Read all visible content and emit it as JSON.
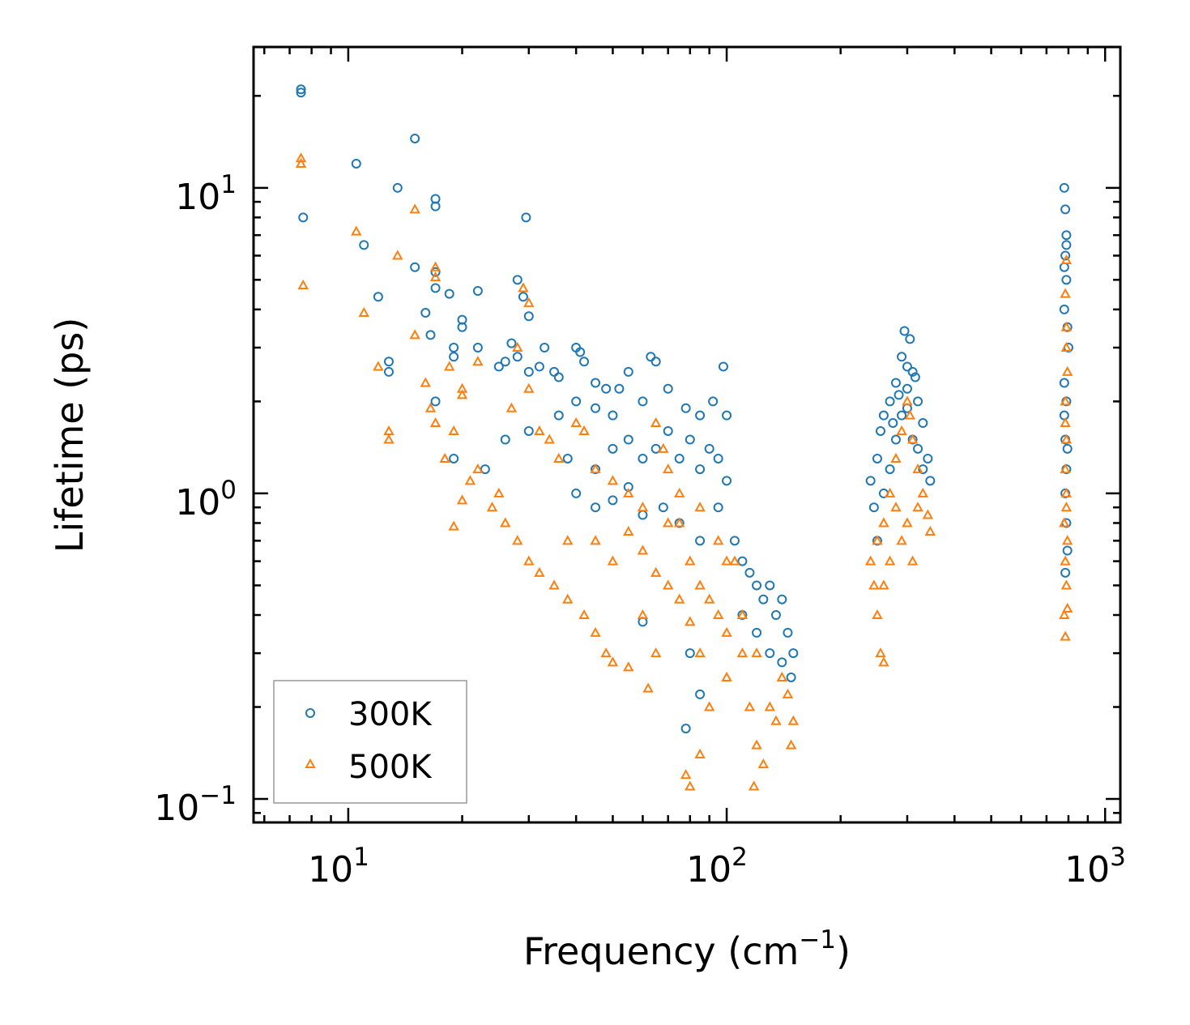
{
  "chart_data": {
    "type": "scatter",
    "title": "",
    "xlabel": {
      "text": "Frequency (cm",
      "sup": "−1",
      "close": ")"
    },
    "ylabel": "Lifetime (ps)",
    "xscale": "log",
    "yscale": "log",
    "xlim": [
      5.62,
      1097
    ],
    "ylim": [
      0.0838,
      28.9
    ],
    "grid": false,
    "legend_placement": "lower-left",
    "xticks": [
      {
        "value": 10,
        "base": "10",
        "exp": "1"
      },
      {
        "value": 100,
        "base": "10",
        "exp": "2"
      },
      {
        "value": 1000,
        "base": "10",
        "exp": "3"
      }
    ],
    "yticks": [
      {
        "value": 10,
        "base": "10",
        "exp": "1"
      },
      {
        "value": 1,
        "base": "10",
        "exp": "0"
      },
      {
        "value": 0.1,
        "base": "10",
        "exp": "−1"
      }
    ],
    "series": [
      {
        "name": "300K",
        "marker": "circle",
        "color": "#1f77b4",
        "points": [
          [
            7.5,
            21
          ],
          [
            7.5,
            20.5
          ],
          [
            7.6,
            8
          ],
          [
            10.5,
            12
          ],
          [
            13.5,
            10
          ],
          [
            15,
            14.5
          ],
          [
            11,
            6.5
          ],
          [
            12,
            4.4
          ],
          [
            15,
            5.5
          ],
          [
            16,
            3.9
          ],
          [
            17,
            9.2
          ],
          [
            17,
            8.7
          ],
          [
            16.5,
            3.3
          ],
          [
            17,
            4.7
          ],
          [
            17,
            5.3
          ],
          [
            18.5,
            4.5
          ],
          [
            19,
            2.8
          ],
          [
            19,
            3
          ],
          [
            20,
            3.7
          ],
          [
            20,
            3.5
          ],
          [
            22,
            4.6
          ],
          [
            12.8,
            2.7
          ],
          [
            12.8,
            2.5
          ],
          [
            17,
            2
          ],
          [
            19,
            1.3
          ],
          [
            22,
            3
          ],
          [
            23,
            1.2
          ],
          [
            25,
            2.6
          ],
          [
            26,
            2.7
          ],
          [
            27,
            3.1
          ],
          [
            28,
            5
          ],
          [
            29,
            4.4
          ],
          [
            29.5,
            8
          ],
          [
            30,
            3.8
          ],
          [
            28,
            2.8
          ],
          [
            30,
            2.5
          ],
          [
            32,
            2.6
          ],
          [
            33,
            3
          ],
          [
            35,
            2.5
          ],
          [
            36,
            2.4
          ],
          [
            40,
            3
          ],
          [
            41,
            2.9
          ],
          [
            42,
            2.7
          ],
          [
            45,
            2.3
          ],
          [
            48,
            2.2
          ],
          [
            52,
            2.2
          ],
          [
            63,
            2.8
          ],
          [
            65,
            2.7
          ],
          [
            98,
            2.6
          ],
          [
            36,
            1.8
          ],
          [
            40,
            2
          ],
          [
            45,
            1.9
          ],
          [
            50,
            1.8
          ],
          [
            55,
            2.5
          ],
          [
            60,
            2
          ],
          [
            70,
            2.2
          ],
          [
            78,
            1.9
          ],
          [
            85,
            1.8
          ],
          [
            92,
            2
          ],
          [
            100,
            1.8
          ],
          [
            26,
            1.5
          ],
          [
            30,
            1.6
          ],
          [
            38,
            1.3
          ],
          [
            45,
            1.2
          ],
          [
            50,
            1.4
          ],
          [
            55,
            1.5
          ],
          [
            60,
            1.3
          ],
          [
            65,
            1.4
          ],
          [
            70,
            1.6
          ],
          [
            75,
            1.3
          ],
          [
            80,
            1.5
          ],
          [
            85,
            1.2
          ],
          [
            90,
            1.4
          ],
          [
            95,
            1.3
          ],
          [
            100,
            1.1
          ],
          [
            40,
            1
          ],
          [
            45,
            0.9
          ],
          [
            50,
            0.95
          ],
          [
            55,
            1.05
          ],
          [
            60,
            0.85
          ],
          [
            68,
            0.9
          ],
          [
            75,
            0.8
          ],
          [
            85,
            0.7
          ],
          [
            95,
            0.9
          ],
          [
            105,
            0.7
          ],
          [
            110,
            0.6
          ],
          [
            115,
            0.55
          ],
          [
            120,
            0.5
          ],
          [
            125,
            0.45
          ],
          [
            130,
            0.5
          ],
          [
            135,
            0.4
          ],
          [
            140,
            0.45
          ],
          [
            145,
            0.35
          ],
          [
            150,
            0.3
          ],
          [
            148,
            0.25
          ],
          [
            130,
            0.3
          ],
          [
            80,
            0.3
          ],
          [
            85,
            0.22
          ],
          [
            78,
            0.17
          ],
          [
            60,
            0.38
          ],
          [
            110,
            0.4
          ],
          [
            120,
            0.35
          ],
          [
            140,
            0.28
          ],
          [
            240,
            1.1
          ],
          [
            245,
            0.9
          ],
          [
            250,
            1.3
          ],
          [
            255,
            1.6
          ],
          [
            260,
            1.8
          ],
          [
            270,
            2
          ],
          [
            280,
            2.3
          ],
          [
            290,
            2.8
          ],
          [
            295,
            3.4
          ],
          [
            300,
            2.6
          ],
          [
            305,
            3.2
          ],
          [
            310,
            2.5
          ],
          [
            320,
            2
          ],
          [
            330,
            1.7
          ],
          [
            340,
            1.3
          ],
          [
            345,
            1.1
          ],
          [
            250,
            0.7
          ],
          [
            260,
            1
          ],
          [
            270,
            1.2
          ],
          [
            280,
            1.5
          ],
          [
            290,
            1.8
          ],
          [
            300,
            1.9
          ],
          [
            310,
            1.5
          ],
          [
            320,
            1.4
          ],
          [
            330,
            1.2
          ],
          [
            275,
            1.7
          ],
          [
            285,
            2.1
          ],
          [
            300,
            2.2
          ],
          [
            315,
            2.4
          ],
          [
            780,
            10
          ],
          [
            785,
            8.5
          ],
          [
            790,
            7
          ],
          [
            785,
            6
          ],
          [
            790,
            5
          ],
          [
            780,
            4
          ],
          [
            795,
            3.5
          ],
          [
            780,
            2.3
          ],
          [
            790,
            2
          ],
          [
            785,
            1.5
          ],
          [
            790,
            1.2
          ],
          [
            785,
            1
          ],
          [
            790,
            0.8
          ],
          [
            795,
            0.65
          ],
          [
            785,
            0.55
          ],
          [
            780,
            5.5
          ],
          [
            790,
            6.5
          ],
          [
            800,
            3
          ],
          [
            780,
            1.8
          ],
          [
            795,
            1.4
          ]
        ]
      },
      {
        "name": "500K",
        "marker": "triangle",
        "color": "#ff7f0e",
        "points": [
          [
            7.5,
            12.5
          ],
          [
            7.5,
            12
          ],
          [
            7.6,
            4.8
          ],
          [
            10.5,
            7.2
          ],
          [
            11,
            3.9
          ],
          [
            12,
            2.6
          ],
          [
            12.8,
            1.6
          ],
          [
            12.8,
            1.5
          ],
          [
            13.5,
            6
          ],
          [
            15,
            8.5
          ],
          [
            15,
            3.3
          ],
          [
            16,
            2.3
          ],
          [
            17,
            5.5
          ],
          [
            17,
            5.1
          ],
          [
            16.5,
            1.9
          ],
          [
            17,
            1.7
          ],
          [
            18,
            1.3
          ],
          [
            18.5,
            2.6
          ],
          [
            19,
            1.6
          ],
          [
            19,
            0.78
          ],
          [
            20,
            2.1
          ],
          [
            20,
            2.2
          ],
          [
            22,
            2.7
          ],
          [
            21,
            1.1
          ],
          [
            20,
            0.95
          ],
          [
            22,
            1.2
          ],
          [
            24,
            0.9
          ],
          [
            25,
            1
          ],
          [
            26,
            0.8
          ],
          [
            27,
            1.9
          ],
          [
            28,
            3
          ],
          [
            29,
            4.7
          ],
          [
            30,
            4.2
          ],
          [
            30,
            2.2
          ],
          [
            32,
            1.6
          ],
          [
            34,
            1.5
          ],
          [
            36,
            1.3
          ],
          [
            28,
            0.7
          ],
          [
            30,
            0.6
          ],
          [
            32,
            0.55
          ],
          [
            35,
            0.5
          ],
          [
            38,
            0.45
          ],
          [
            42,
            0.4
          ],
          [
            45,
            0.35
          ],
          [
            48,
            0.3
          ],
          [
            50,
            0.28
          ],
          [
            55,
            0.27
          ],
          [
            62,
            0.23
          ],
          [
            40,
            1.7
          ],
          [
            42,
            1.6
          ],
          [
            45,
            1.2
          ],
          [
            50,
            1.1
          ],
          [
            55,
            1
          ],
          [
            60,
            0.9
          ],
          [
            65,
            1.7
          ],
          [
            68,
            1.4
          ],
          [
            70,
            1.2
          ],
          [
            75,
            0.8
          ],
          [
            80,
            0.6
          ],
          [
            85,
            0.5
          ],
          [
            90,
            0.45
          ],
          [
            95,
            0.4
          ],
          [
            100,
            0.35
          ],
          [
            38,
            0.7
          ],
          [
            45,
            0.7
          ],
          [
            50,
            0.6
          ],
          [
            55,
            0.75
          ],
          [
            60,
            0.65
          ],
          [
            65,
            0.55
          ],
          [
            70,
            0.5
          ],
          [
            75,
            0.45
          ],
          [
            80,
            0.38
          ],
          [
            85,
            0.3
          ],
          [
            78,
            0.12
          ],
          [
            80,
            0.11
          ],
          [
            85,
            0.14
          ],
          [
            90,
            0.2
          ],
          [
            100,
            0.25
          ],
          [
            105,
            0.6
          ],
          [
            110,
            0.3
          ],
          [
            115,
            0.2
          ],
          [
            120,
            0.15
          ],
          [
            118,
            0.11
          ],
          [
            125,
            0.13
          ],
          [
            130,
            0.2
          ],
          [
            135,
            0.18
          ],
          [
            140,
            0.25
          ],
          [
            145,
            0.22
          ],
          [
            150,
            0.18
          ],
          [
            148,
            0.15
          ],
          [
            110,
            0.4
          ],
          [
            120,
            0.3
          ],
          [
            60,
            0.4
          ],
          [
            65,
            0.3
          ],
          [
            70,
            0.8
          ],
          [
            75,
            1
          ],
          [
            85,
            0.9
          ],
          [
            95,
            0.7
          ],
          [
            100,
            0.6
          ],
          [
            240,
            0.6
          ],
          [
            245,
            0.5
          ],
          [
            250,
            0.4
          ],
          [
            255,
            0.3
          ],
          [
            260,
            0.28
          ],
          [
            250,
            0.7
          ],
          [
            260,
            0.8
          ],
          [
            270,
            1
          ],
          [
            280,
            1.3
          ],
          [
            290,
            1.6
          ],
          [
            300,
            2
          ],
          [
            305,
            1.8
          ],
          [
            310,
            1.5
          ],
          [
            320,
            1.2
          ],
          [
            330,
            1
          ],
          [
            340,
            0.85
          ],
          [
            345,
            0.75
          ],
          [
            280,
            0.9
          ],
          [
            290,
            0.7
          ],
          [
            300,
            0.8
          ],
          [
            310,
            0.6
          ],
          [
            270,
            0.6
          ],
          [
            260,
            0.5
          ],
          [
            320,
            0.9
          ],
          [
            790,
            5.8
          ],
          [
            785,
            4.5
          ],
          [
            790,
            3.5
          ],
          [
            795,
            2.5
          ],
          [
            785,
            2
          ],
          [
            790,
            1.5
          ],
          [
            785,
            1.2
          ],
          [
            790,
            1
          ],
          [
            780,
            0.8
          ],
          [
            795,
            0.7
          ],
          [
            785,
            0.6
          ],
          [
            790,
            0.5
          ],
          [
            780,
            0.4
          ],
          [
            785,
            0.34
          ],
          [
            795,
            0.42
          ],
          [
            790,
            3
          ],
          [
            785,
            1.7
          ],
          [
            790,
            0.9
          ]
        ]
      }
    ]
  }
}
